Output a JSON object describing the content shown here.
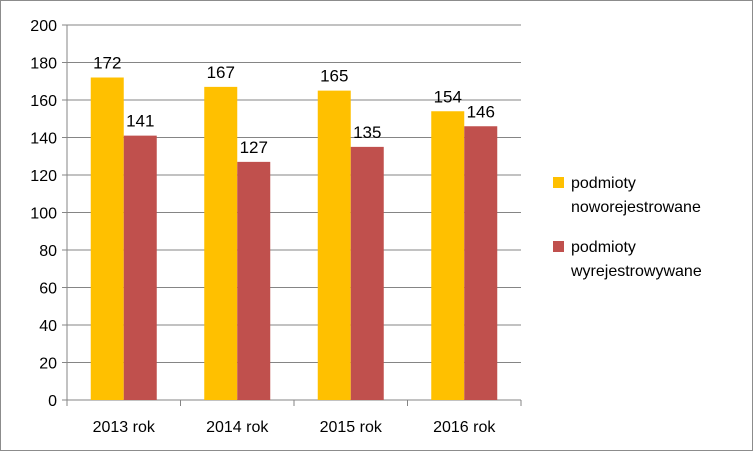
{
  "chart_data": {
    "type": "bar",
    "categories": [
      "2013 rok",
      "2014 rok",
      "2015 rok",
      "2016 rok"
    ],
    "series": [
      {
        "name_lines": [
          "podmioty",
          "noworejestrowane"
        ],
        "values": [
          172,
          167,
          165,
          154
        ],
        "color": "#FFC000"
      },
      {
        "name_lines": [
          "podmioty",
          "wyrejestrowywane"
        ],
        "values": [
          141,
          127,
          135,
          146
        ],
        "color": "#C0504D"
      }
    ],
    "yticks": [
      "0",
      "20",
      "40",
      "60",
      "80",
      "100",
      "120",
      "140",
      "160",
      "180",
      "200"
    ],
    "ylim": [
      0,
      200
    ],
    "grid": true,
    "legend_position": "right",
    "data_labels": true
  }
}
